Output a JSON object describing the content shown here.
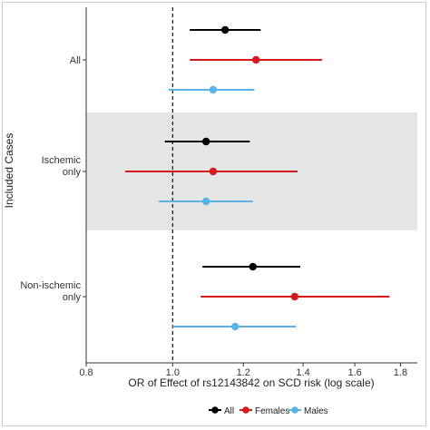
{
  "chart_data": {
    "type": "forest",
    "title": "",
    "xlabel": "OR of Effect of rs12143842 on SCD risk (log scale)",
    "ylabel": "Included Cases",
    "x_scale": "log",
    "xlim": [
      0.8,
      1.88
    ],
    "x_ticks": [
      0.8,
      1.0,
      1.2,
      1.4,
      1.6,
      1.8
    ],
    "x_tick_labels": [
      "0.8",
      "1.0",
      "1.2",
      "1.4",
      "1.6",
      "1.8"
    ],
    "reference_line": 1.0,
    "legend_position": "bottom",
    "categories": [
      "All",
      "Ischemic only",
      "Non-ischemic only"
    ],
    "category_labels": [
      [
        "All"
      ],
      [
        "Ischemic",
        "only"
      ],
      [
        "Non-ischemic",
        "only"
      ]
    ],
    "shaded_category": "Ischemic only",
    "series": [
      {
        "name": "All",
        "color": "#000000",
        "or": [
          1.145,
          1.09,
          1.23
        ],
        "ci_low": [
          1.045,
          0.98,
          1.08
        ],
        "ci_high": [
          1.255,
          1.22,
          1.39
        ]
      },
      {
        "name": "Females",
        "color": "#d7191c",
        "or": [
          1.24,
          1.11,
          1.37
        ],
        "ci_low": [
          1.045,
          0.885,
          1.075
        ],
        "ci_high": [
          1.47,
          1.38,
          1.75
        ]
      },
      {
        "name": "Males",
        "color": "#5bb4e8",
        "or": [
          1.11,
          1.09,
          1.175
        ],
        "ci_low": [
          0.99,
          0.965,
          1.0
        ],
        "ci_high": [
          1.235,
          1.23,
          1.375
        ]
      }
    ]
  }
}
